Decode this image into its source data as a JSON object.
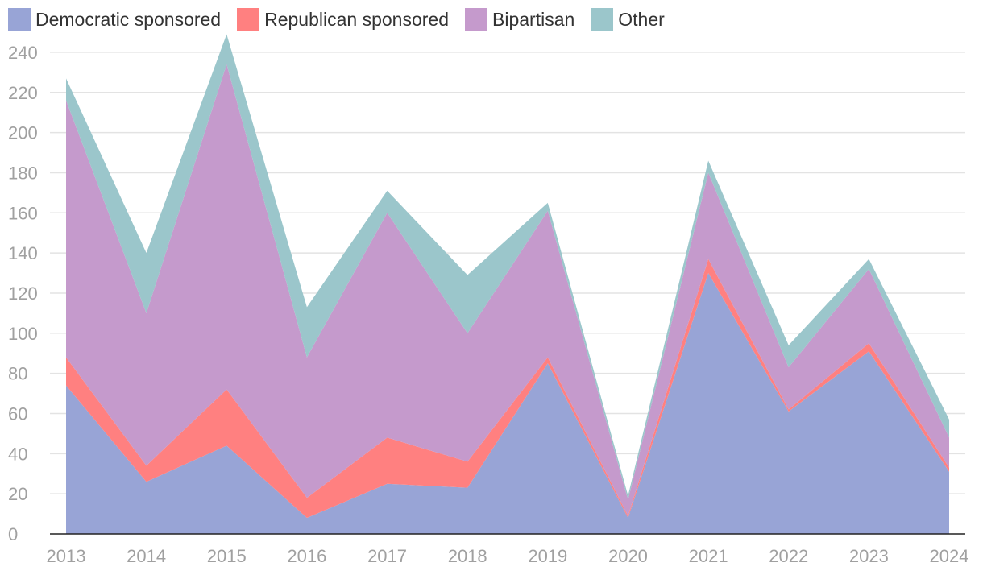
{
  "chart_data": {
    "type": "area",
    "stacked": true,
    "categories": [
      "2013",
      "2014",
      "2015",
      "2016",
      "2017",
      "2018",
      "2019",
      "2020",
      "2021",
      "2022",
      "2023",
      "2024"
    ],
    "series": [
      {
        "name": "Democratic sponsored",
        "color": "#98a4d6",
        "values": [
          74,
          26,
          44,
          8,
          25,
          23,
          85,
          8,
          130,
          61,
          91,
          31
        ]
      },
      {
        "name": "Republican sponsored",
        "color": "#ff8080",
        "values": [
          14,
          8,
          28,
          10,
          23,
          13,
          3,
          1,
          7,
          1,
          4,
          2
        ]
      },
      {
        "name": "Bipartisan",
        "color": "#c59acc",
        "values": [
          128,
          76,
          162,
          70,
          112,
          64,
          73,
          8,
          43,
          21,
          37,
          15
        ]
      },
      {
        "name": "Other",
        "color": "#9bc6cb",
        "values": [
          11,
          30,
          15,
          25,
          11,
          29,
          4,
          2,
          6,
          11,
          5,
          9
        ]
      }
    ],
    "yticks": [
      0,
      20,
      40,
      60,
      80,
      100,
      120,
      140,
      160,
      180,
      200,
      220,
      240
    ],
    "ylim": [
      0,
      250
    ],
    "title": "",
    "xlabel": "",
    "ylabel": "",
    "grid": true,
    "legend_position": "top-left"
  }
}
